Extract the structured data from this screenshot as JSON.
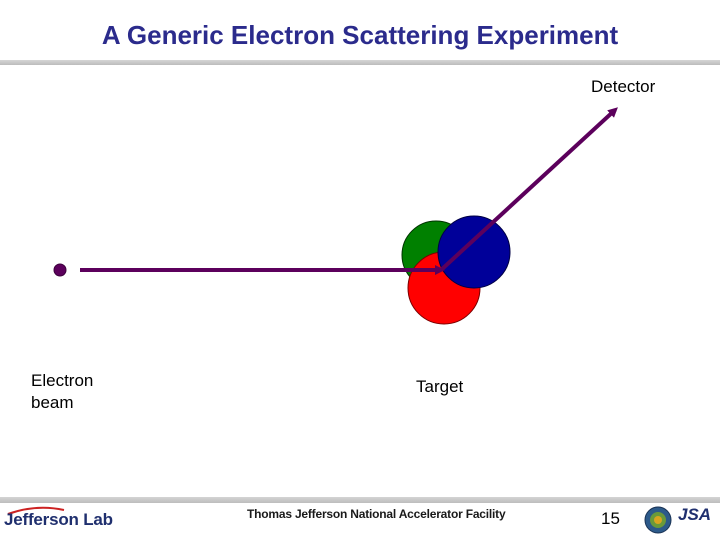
{
  "slide": {
    "title": "A Generic Electron Scattering Experiment",
    "page_number": "15"
  },
  "labels": {
    "detector": "Detector",
    "electron_beam": "Electron\nbeam",
    "target": "Target"
  },
  "footer": {
    "logo_text": "Jefferson Lab",
    "facility_text": "Thomas Jefferson National Accelerator Facility",
    "jsa_text": "JSA"
  },
  "colors": {
    "beam": "#5c005c",
    "nucleon_green": "#008000",
    "nucleon_red": "#ff0000",
    "nucleon_blue": "#000099",
    "title": "#2b2b8c"
  }
}
